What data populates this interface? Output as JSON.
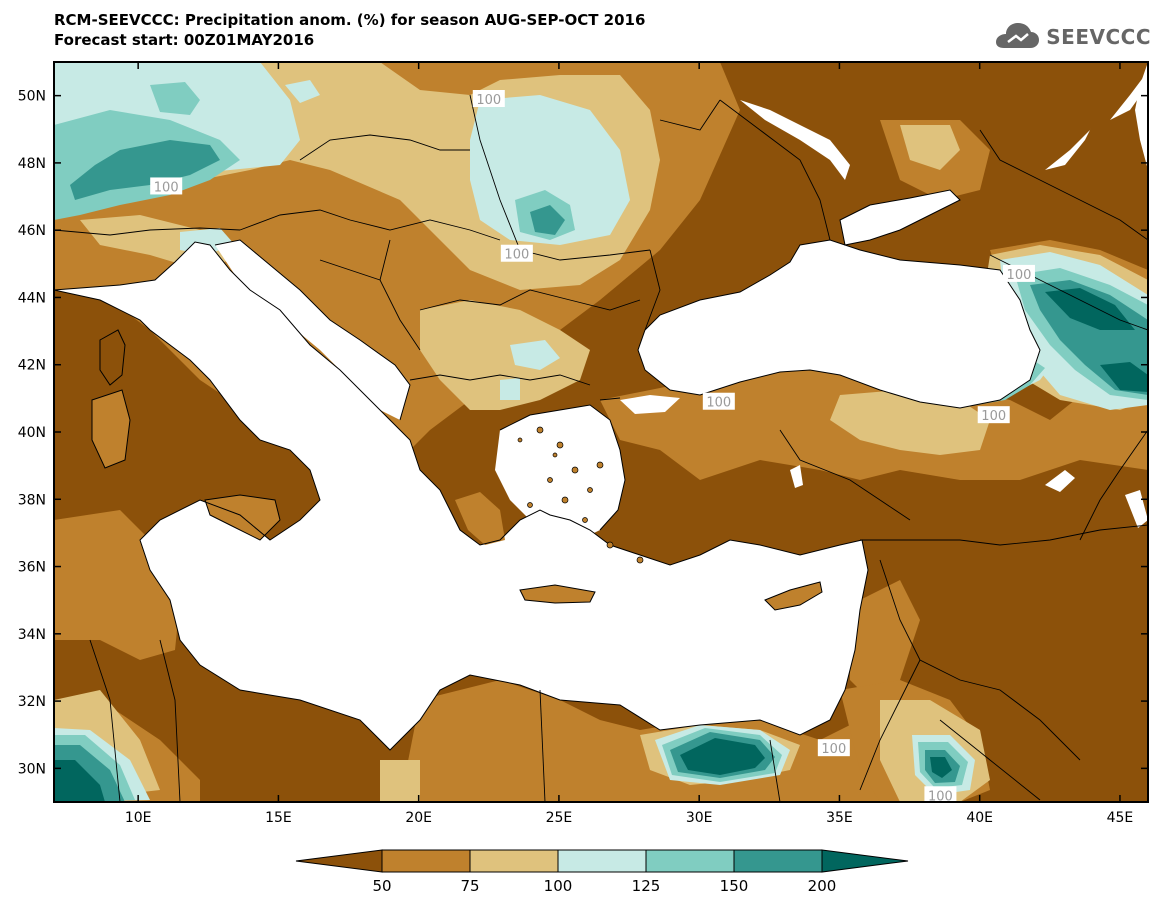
{
  "header": {
    "title": "RCM-SEEVCCC: Precipitation anom. (%) for season AUG-SEP-OCT 2016",
    "subtitle": "Forecast start: 00Z01MAY2016",
    "brand": "SEEVCCC",
    "brand_icon": "cloud-icon"
  },
  "map": {
    "lon_range": [
      7,
      46
    ],
    "lat_range": [
      29,
      51
    ],
    "x_ticks": [
      {
        "lon": 10,
        "label": "10E"
      },
      {
        "lon": 15,
        "label": "15E"
      },
      {
        "lon": 20,
        "label": "20E"
      },
      {
        "lon": 25,
        "label": "25E"
      },
      {
        "lon": 30,
        "label": "30E"
      },
      {
        "lon": 35,
        "label": "35E"
      },
      {
        "lon": 40,
        "label": "40E"
      },
      {
        "lon": 45,
        "label": "45E"
      }
    ],
    "y_ticks": [
      {
        "lat": 30,
        "label": "30N"
      },
      {
        "lat": 32,
        "label": "32N"
      },
      {
        "lat": 34,
        "label": "34N"
      },
      {
        "lat": 36,
        "label": "36N"
      },
      {
        "lat": 38,
        "label": "38N"
      },
      {
        "lat": 40,
        "label": "40N"
      },
      {
        "lat": 42,
        "label": "42N"
      },
      {
        "lat": 44,
        "label": "44N"
      },
      {
        "lat": 46,
        "label": "46N"
      },
      {
        "lat": 48,
        "label": "48N"
      },
      {
        "lat": 50,
        "label": "50N"
      }
    ],
    "contour_labels": [
      {
        "text": "100",
        "lon": 22.5,
        "lat": 49.9
      },
      {
        "text": "100",
        "lon": 11.0,
        "lat": 47.3
      },
      {
        "text": "100",
        "lon": 23.5,
        "lat": 45.3
      },
      {
        "text": "100",
        "lon": 41.4,
        "lat": 44.7
      },
      {
        "text": "100",
        "lon": 30.7,
        "lat": 40.9
      },
      {
        "text": "100",
        "lon": 40.5,
        "lat": 40.5
      },
      {
        "text": "100",
        "lon": 34.8,
        "lat": 30.6
      },
      {
        "text": "100",
        "lon": 38.6,
        "lat": 29.2
      }
    ]
  },
  "colorbar": {
    "labels": [
      "50",
      "75",
      "100",
      "125",
      "150",
      "200"
    ],
    "colors": [
      "#8c510a",
      "#bf812d",
      "#dfc27d",
      "#c7eae5",
      "#80cdc1",
      "#35978f",
      "#01665e"
    ]
  },
  "palette": {
    "below_50": "#8c510a",
    "50_75": "#bf812d",
    "75_100": "#dfc27d",
    "100_125": "#c7eae5",
    "125_150": "#80cdc1",
    "150_200": "#35978f",
    "above_200": "#01665e",
    "sea": "#ffffff"
  }
}
